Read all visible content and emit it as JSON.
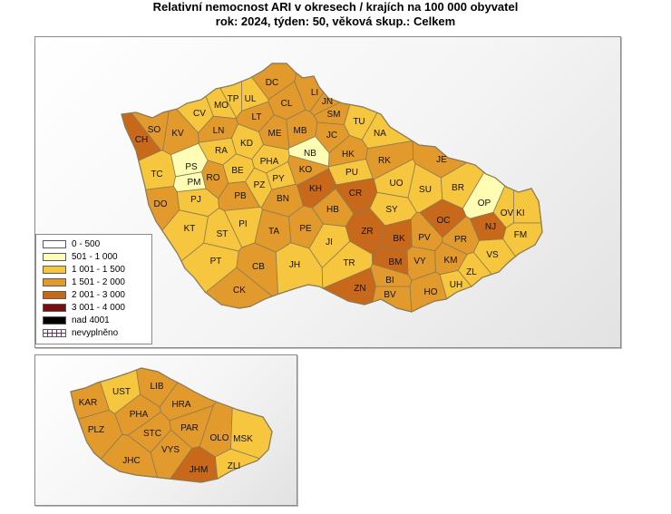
{
  "title_line1": "Relativní nemocnost ARI v okresech / krajích na 100 000 obyvatel",
  "title_line2": "rok: 2024, týden: 50, věková skup.: Celkem",
  "colors": {
    "c0": "#ffffff",
    "c1": "#fffcb4",
    "c2": "#f6c63e",
    "c3": "#e39a2c",
    "c4": "#c8681a",
    "c5": "#7a0e0e",
    "c6": "#000000",
    "border": "#8b7b55"
  },
  "legend": [
    {
      "label": "0 - 500",
      "color": "c0"
    },
    {
      "label": "501 - 1 000",
      "color": "c1"
    },
    {
      "label": "1 001 - 1 500",
      "color": "c2"
    },
    {
      "label": "1 501 - 2 000",
      "color": "c3"
    },
    {
      "label": "2 001 - 3 000",
      "color": "c4"
    },
    {
      "label": "3 001 - 4 000",
      "color": "c5"
    },
    {
      "label": "nad 4001",
      "color": "c6"
    },
    {
      "label": "nevyplněno",
      "color": "hatch"
    }
  ],
  "districts": [
    {
      "code": "DC",
      "class": "c3"
    },
    {
      "code": "LI",
      "class": "c3"
    },
    {
      "code": "UL",
      "class": "c2"
    },
    {
      "code": "TP",
      "class": "c2"
    },
    {
      "code": "CL",
      "class": "c3"
    },
    {
      "code": "JN",
      "class": "c3"
    },
    {
      "code": "MO",
      "class": "c2"
    },
    {
      "code": "SM",
      "class": "c3"
    },
    {
      "code": "CV",
      "class": "c2"
    },
    {
      "code": "LT",
      "class": "c3"
    },
    {
      "code": "TU",
      "class": "c2"
    },
    {
      "code": "SO",
      "class": "c3"
    },
    {
      "code": "CH",
      "class": "c4"
    },
    {
      "code": "KV",
      "class": "c3"
    },
    {
      "code": "LN",
      "class": "c3"
    },
    {
      "code": "ME",
      "class": "c3"
    },
    {
      "code": "MB",
      "class": "c3"
    },
    {
      "code": "JC",
      "class": "c3"
    },
    {
      "code": "NA",
      "class": "c2"
    },
    {
      "code": "RA",
      "class": "c2"
    },
    {
      "code": "KD",
      "class": "c2"
    },
    {
      "code": "PHA",
      "class": "c2"
    },
    {
      "code": "NB",
      "class": "c1"
    },
    {
      "code": "HK",
      "class": "c3"
    },
    {
      "code": "RK",
      "class": "c3"
    },
    {
      "code": "JE",
      "class": "c3"
    },
    {
      "code": "TC",
      "class": "c2"
    },
    {
      "code": "PS",
      "class": "c1"
    },
    {
      "code": "BE",
      "class": "c2"
    },
    {
      "code": "PY",
      "class": "c2"
    },
    {
      "code": "KO",
      "class": "c3"
    },
    {
      "code": "PU",
      "class": "c2"
    },
    {
      "code": "PM",
      "class": "c1"
    },
    {
      "code": "RO",
      "class": "c3"
    },
    {
      "code": "PZ",
      "class": "c2"
    },
    {
      "code": "KH",
      "class": "c4"
    },
    {
      "code": "UO",
      "class": "c2"
    },
    {
      "code": "SU",
      "class": "c2"
    },
    {
      "code": "BR",
      "class": "c2"
    },
    {
      "code": "PJ",
      "class": "c2"
    },
    {
      "code": "PB",
      "class": "c3"
    },
    {
      "code": "BN",
      "class": "c3"
    },
    {
      "code": "CR",
      "class": "c4"
    },
    {
      "code": "OP",
      "class": "c1"
    },
    {
      "code": "DO",
      "class": "c3"
    },
    {
      "code": "HB",
      "class": "c3"
    },
    {
      "code": "SY",
      "class": "c2"
    },
    {
      "code": "OC",
      "class": "c4"
    },
    {
      "code": "KI",
      "class": "c2"
    },
    {
      "code": "OV",
      "class": "c2"
    },
    {
      "code": "NJ",
      "class": "c4"
    },
    {
      "code": "KT",
      "class": "c2"
    },
    {
      "code": "PI",
      "class": "c2"
    },
    {
      "code": "PE",
      "class": "c3"
    },
    {
      "code": "ZR",
      "class": "c4"
    },
    {
      "code": "BK",
      "class": "c4"
    },
    {
      "code": "PV",
      "class": "c3"
    },
    {
      "code": "PR",
      "class": "c3"
    },
    {
      "code": "FM",
      "class": "c2"
    },
    {
      "code": "ST",
      "class": "c2"
    },
    {
      "code": "TA",
      "class": "c3"
    },
    {
      "code": "JI",
      "class": "c2"
    },
    {
      "code": "VS",
      "class": "c2"
    },
    {
      "code": "BM",
      "class": "c4"
    },
    {
      "code": "PT",
      "class": "c2"
    },
    {
      "code": "CB",
      "class": "c3"
    },
    {
      "code": "JH",
      "class": "c2"
    },
    {
      "code": "TR",
      "class": "c2"
    },
    {
      "code": "VY",
      "class": "c3"
    },
    {
      "code": "KM",
      "class": "c3"
    },
    {
      "code": "ZL",
      "class": "c2"
    },
    {
      "code": "BI",
      "class": "c3"
    },
    {
      "code": "UH",
      "class": "c2"
    },
    {
      "code": "CK",
      "class": "c3"
    },
    {
      "code": "ZN",
      "class": "c4"
    },
    {
      "code": "BV",
      "class": "c3"
    },
    {
      "code": "HO",
      "class": "c3"
    }
  ],
  "regions": [
    {
      "code": "UST",
      "class": "c2"
    },
    {
      "code": "LIB",
      "class": "c3"
    },
    {
      "code": "KAR",
      "class": "c3"
    },
    {
      "code": "HRA",
      "class": "c3"
    },
    {
      "code": "PHA",
      "class": "c3"
    },
    {
      "code": "PLZ",
      "class": "c3"
    },
    {
      "code": "STC",
      "class": "c3"
    },
    {
      "code": "PAR",
      "class": "c3"
    },
    {
      "code": "OLO",
      "class": "c3"
    },
    {
      "code": "MSK",
      "class": "c2"
    },
    {
      "code": "VYS",
      "class": "c3"
    },
    {
      "code": "JHC",
      "class": "c3"
    },
    {
      "code": "JHM",
      "class": "c4"
    },
    {
      "code": "ZLI",
      "class": "c2"
    }
  ]
}
